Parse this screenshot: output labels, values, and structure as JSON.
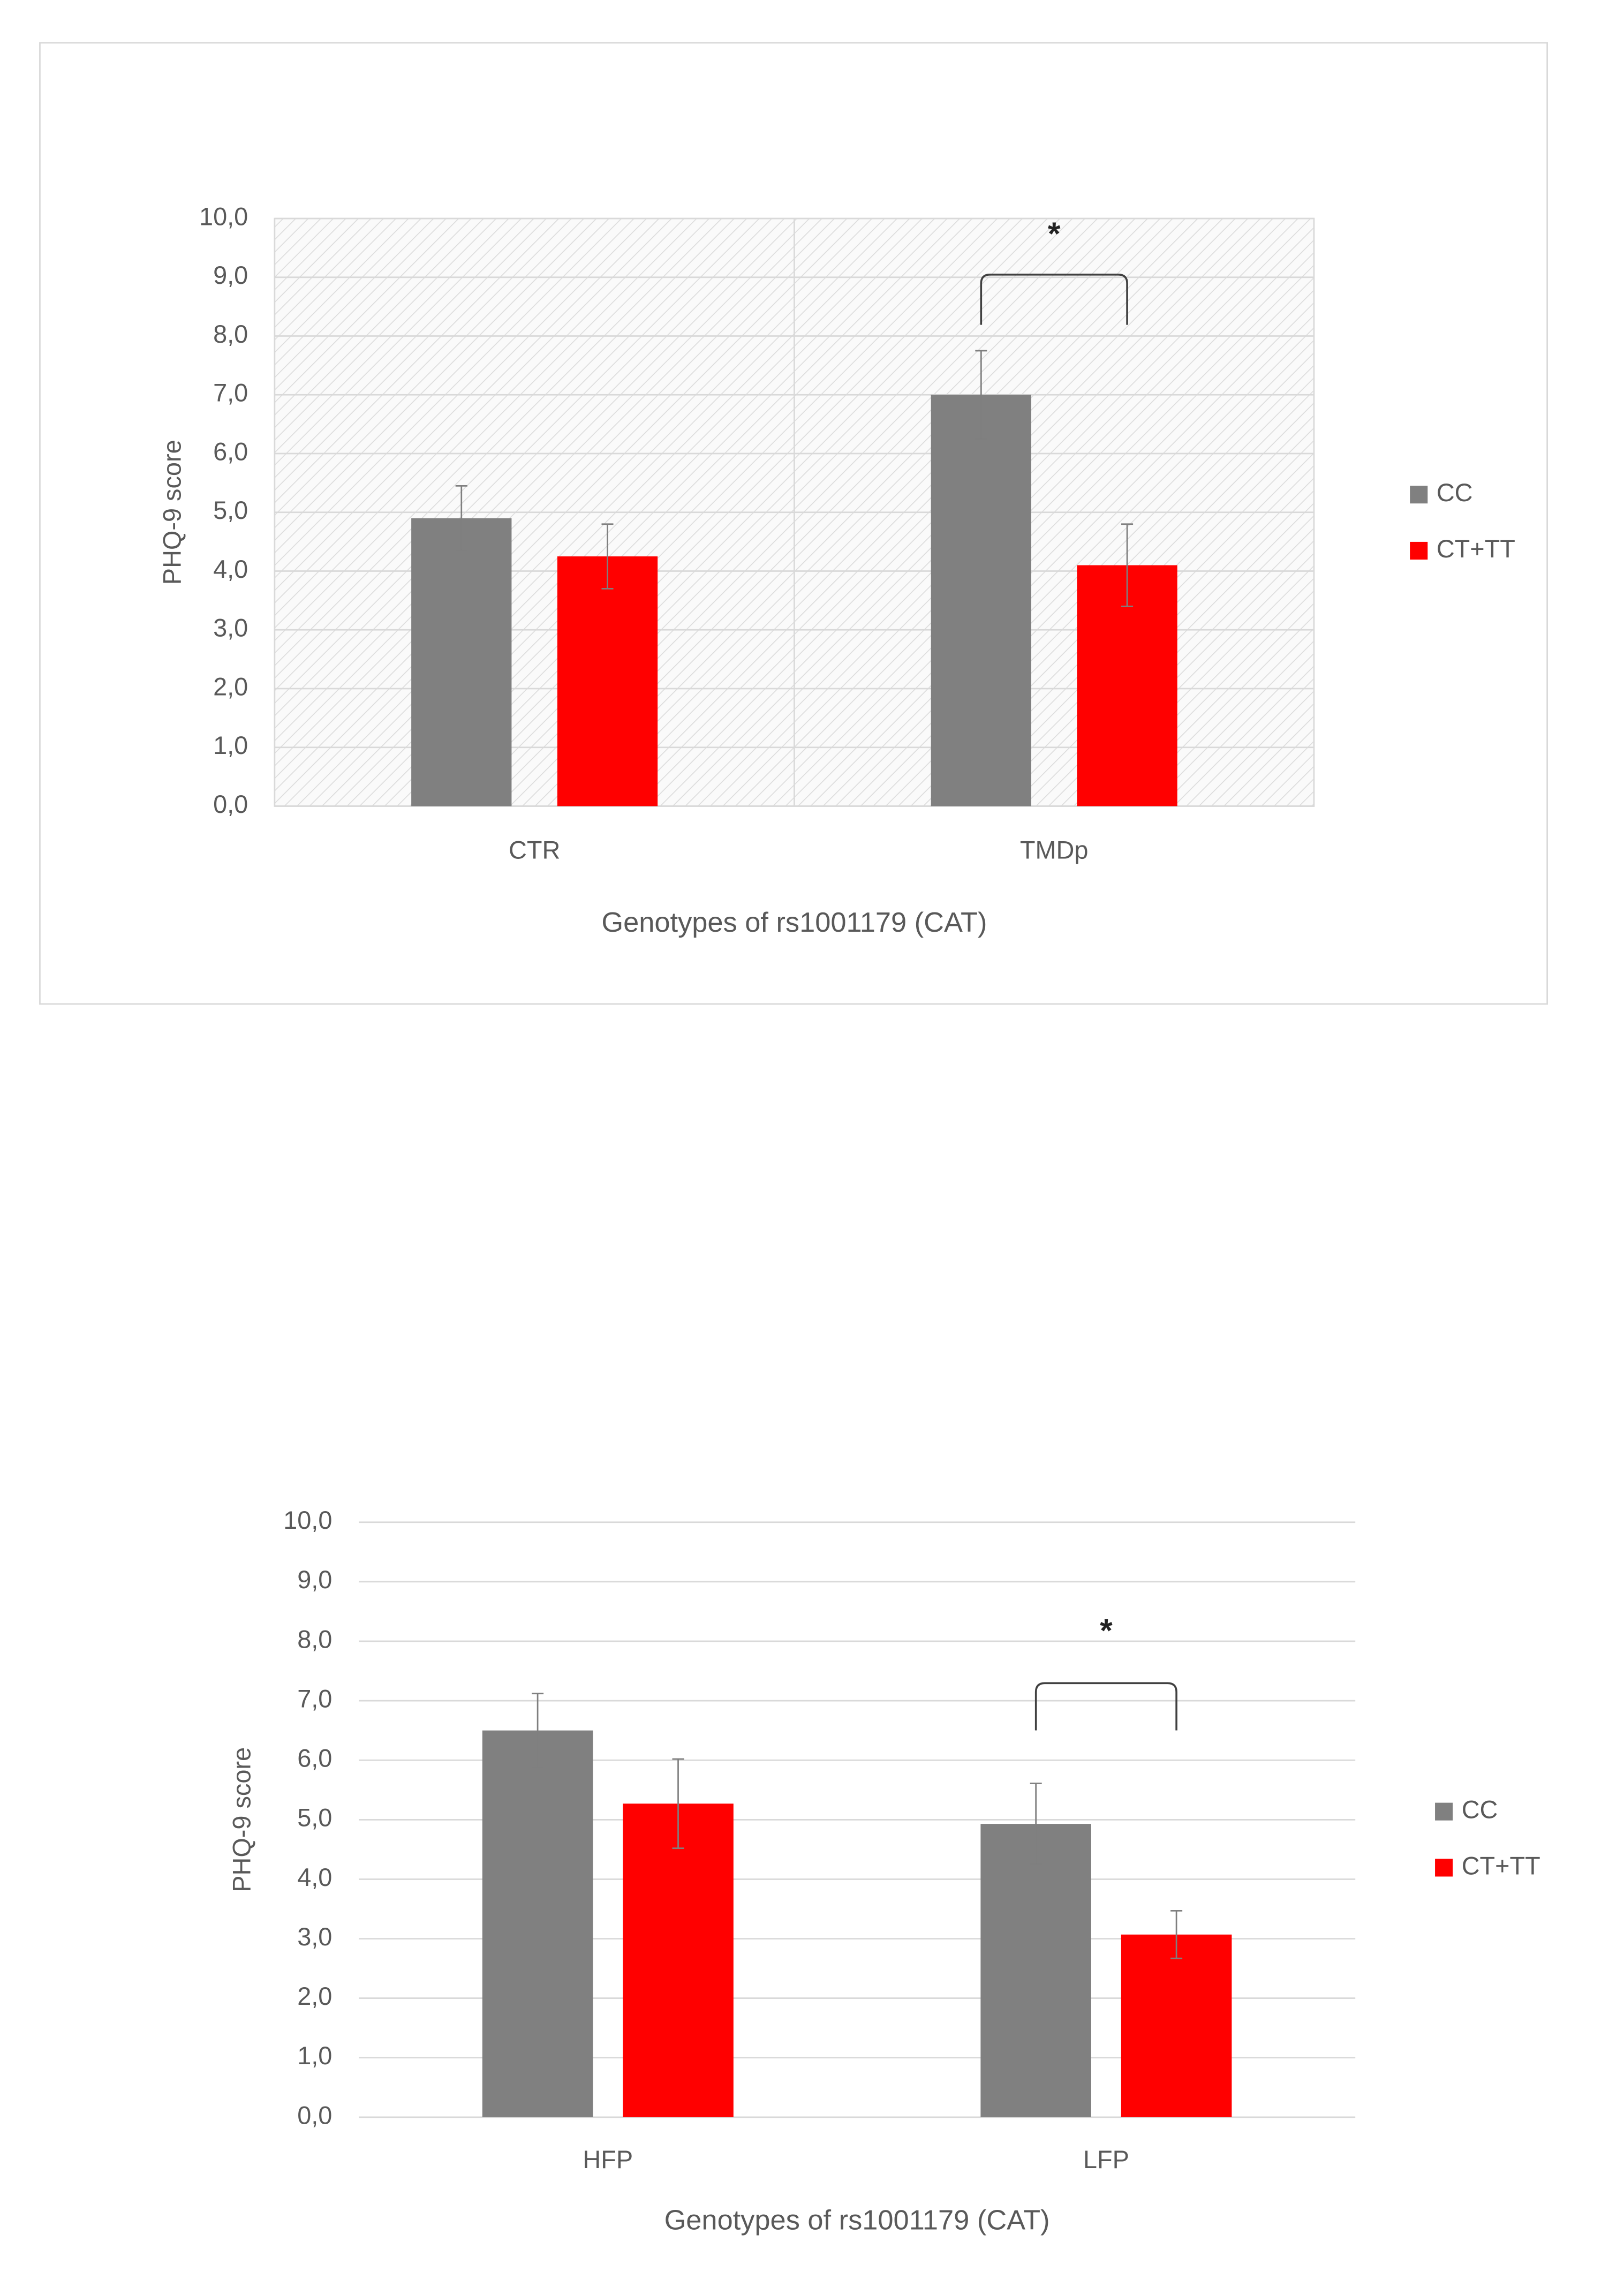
{
  "chart_data": [
    {
      "type": "bar",
      "y_label": "PHQ-9 score",
      "x_label": "Genotypes of rs1001179 (CAT)",
      "categories": [
        "CTR",
        "TMDp"
      ],
      "series": [
        {
          "name": "CC",
          "color": "#808080",
          "values": [
            4.9,
            7.0
          ],
          "errors": [
            0.55,
            0.75
          ]
        },
        {
          "name": "CT+TT",
          "color": "#ff0000",
          "values": [
            4.25,
            4.1
          ],
          "errors": [
            0.55,
            0.7
          ]
        }
      ],
      "ylim": [
        0,
        10
      ],
      "yticks": [
        {
          "value": 0,
          "label": "0,0"
        },
        {
          "value": 1,
          "label": "1,0"
        },
        {
          "value": 2,
          "label": "2,0"
        },
        {
          "value": 3,
          "label": "3,0"
        },
        {
          "value": 4,
          "label": "4,0"
        },
        {
          "value": 5,
          "label": "5,0"
        },
        {
          "value": 6,
          "label": "6,0"
        },
        {
          "value": 7,
          "label": "7,0"
        },
        {
          "value": 8,
          "label": "8,0"
        },
        {
          "value": 9,
          "label": "9,0"
        },
        {
          "value": 10,
          "label": "10,0"
        }
      ],
      "grid": true,
      "hatched_background": true,
      "category_dividers": true,
      "legend": "right",
      "annotation": "*"
    },
    {
      "type": "bar",
      "y_label": "PHQ-9 score",
      "x_label": "Genotypes of rs1001179 (CAT)",
      "categories": [
        "HFP",
        "LFP"
      ],
      "series": [
        {
          "name": "CC",
          "color": "#808080",
          "values": [
            6.5,
            4.93
          ],
          "errors": [
            0.62,
            0.68
          ]
        },
        {
          "name": "CT+TT",
          "color": "#ff0000",
          "values": [
            5.27,
            3.07
          ],
          "errors": [
            0.75,
            0.4
          ]
        }
      ],
      "ylim": [
        0,
        10
      ],
      "yticks": [
        {
          "value": 0,
          "label": "0,0"
        },
        {
          "value": 1,
          "label": "1,0"
        },
        {
          "value": 2,
          "label": "2,0"
        },
        {
          "value": 3,
          "label": "3,0"
        },
        {
          "value": 4,
          "label": "4,0"
        },
        {
          "value": 5,
          "label": "5,0"
        },
        {
          "value": 6,
          "label": "6,0"
        },
        {
          "value": 7,
          "label": "7,0"
        },
        {
          "value": 8,
          "label": "8,0"
        },
        {
          "value": 9,
          "label": "9,0"
        },
        {
          "value": 10,
          "label": "10,0"
        }
      ],
      "grid": true,
      "hatched_background": false,
      "category_dividers": false,
      "legend": "right",
      "annotation": "*"
    }
  ]
}
